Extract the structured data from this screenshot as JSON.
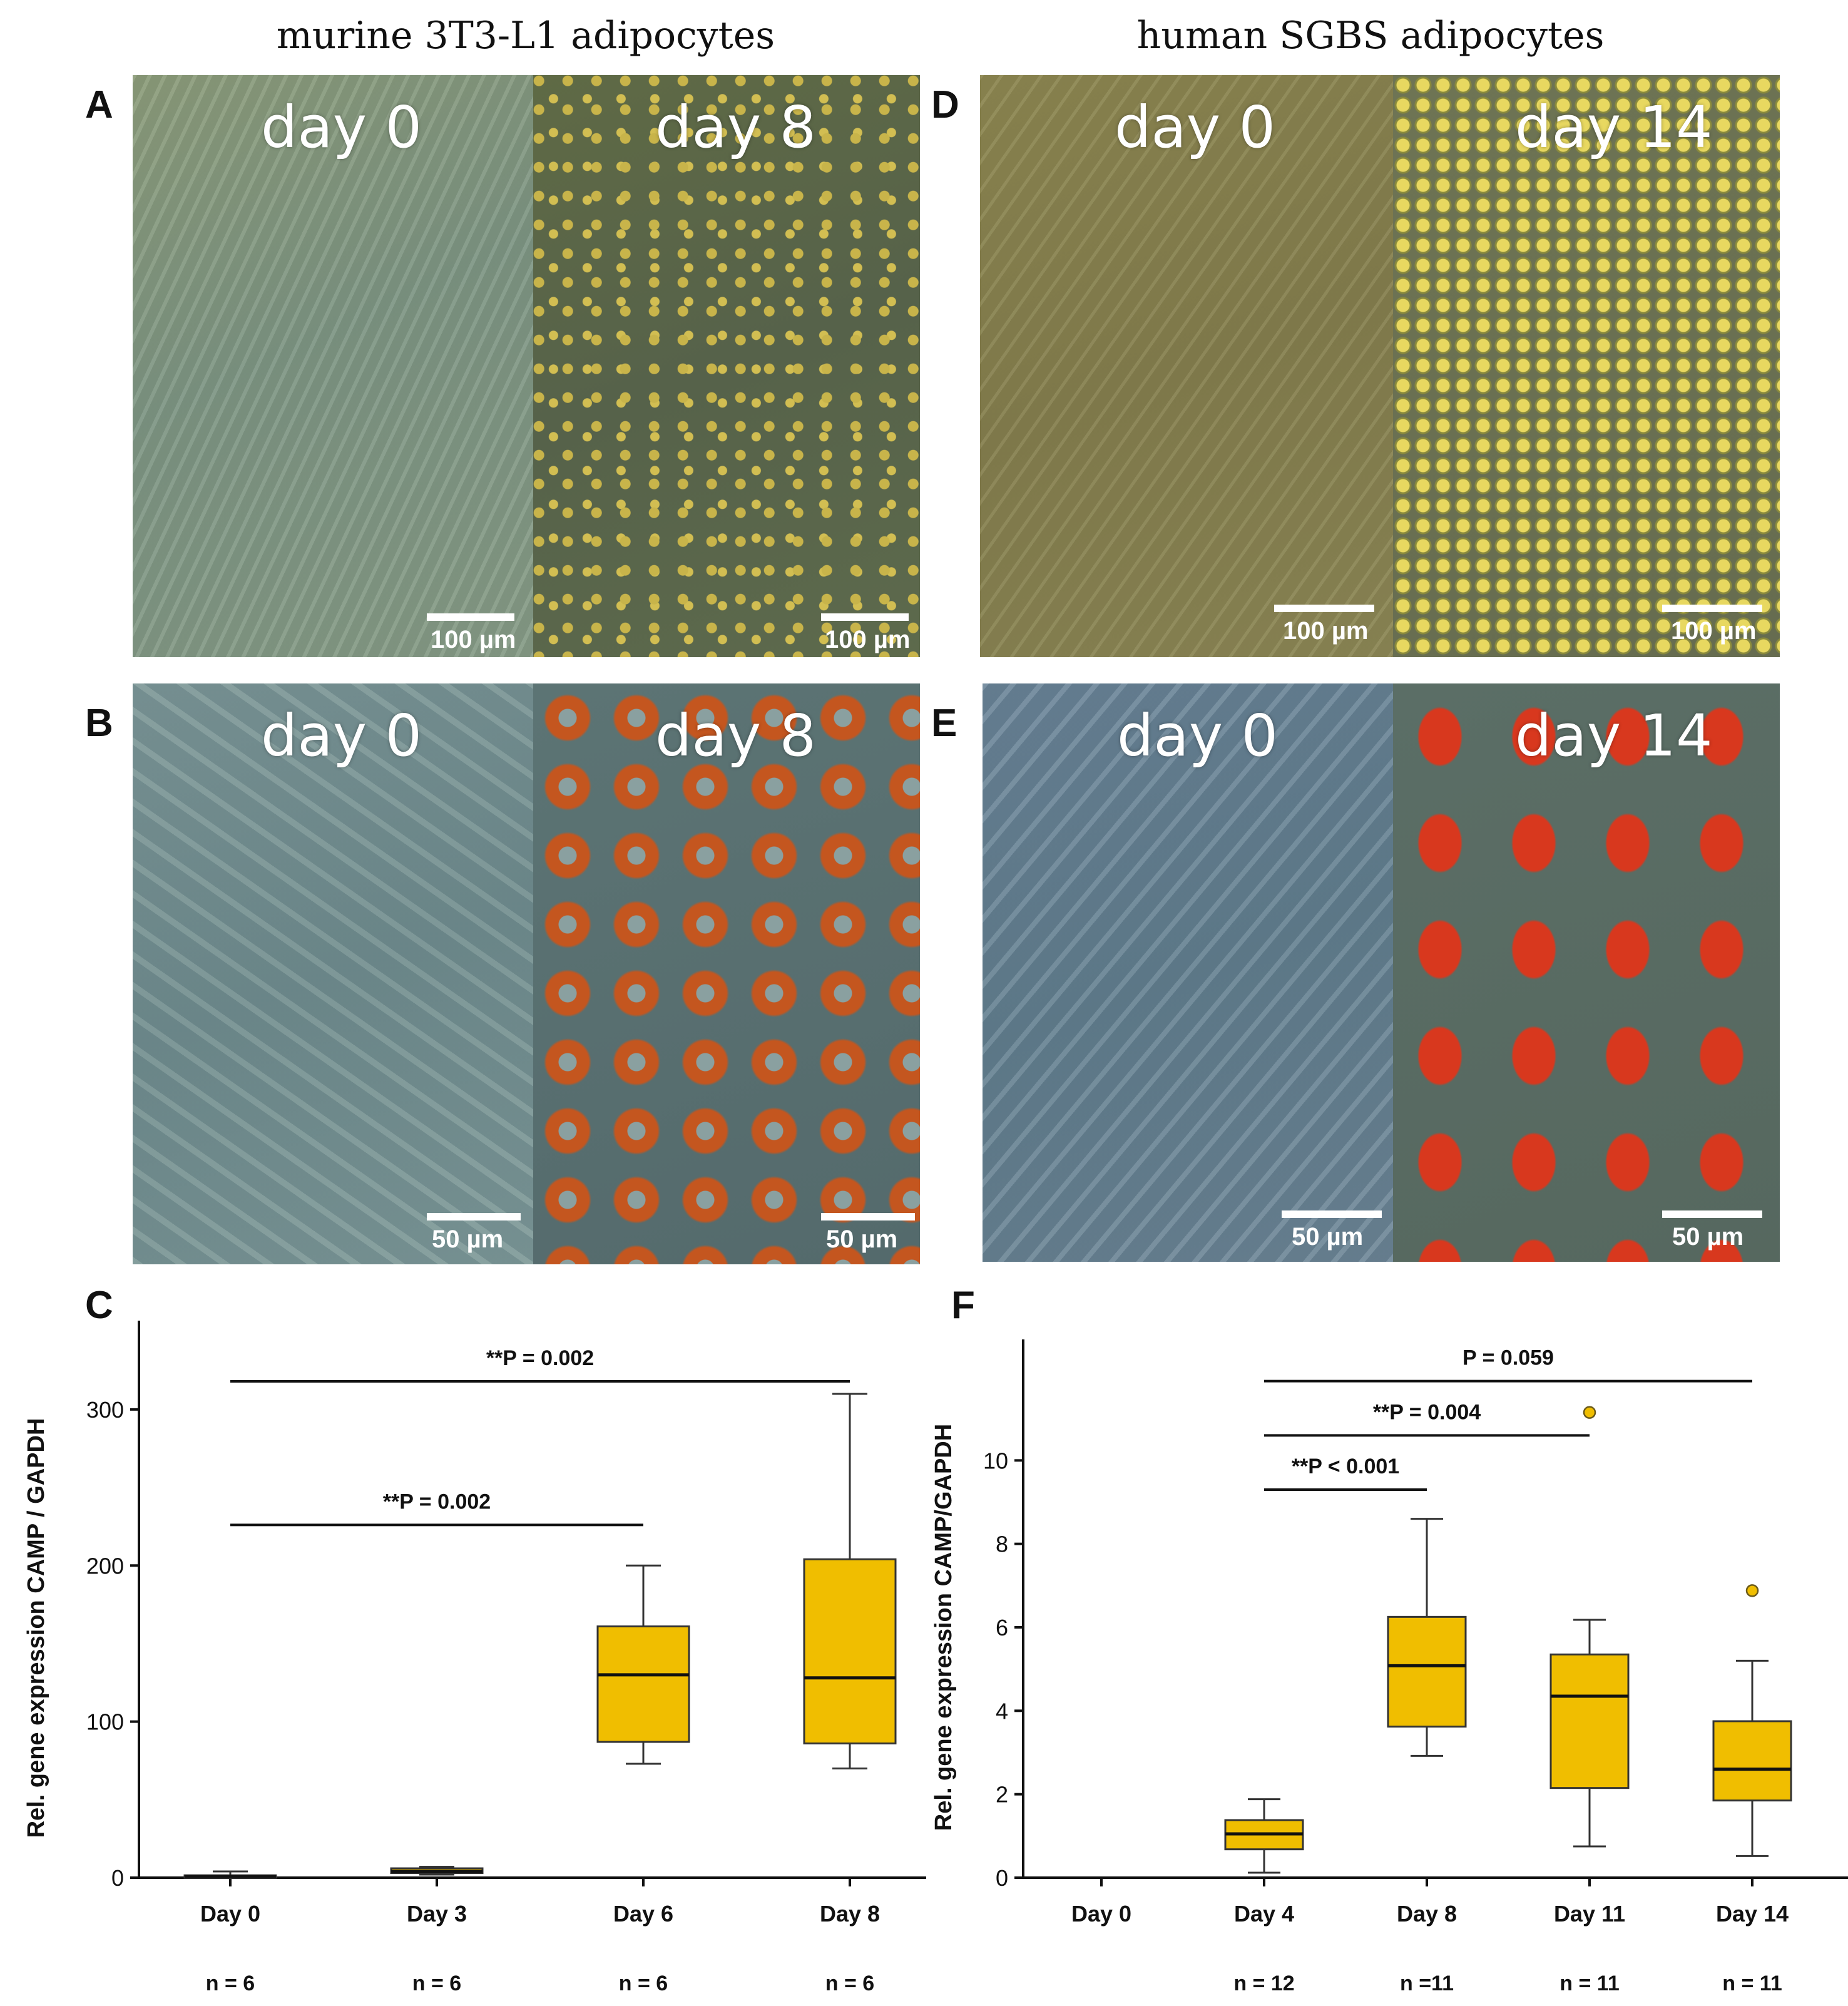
{
  "column_titles": {
    "left": "murine 3T3-L1 adipocytes",
    "right": "human SGBS adipocytes"
  },
  "panels": {
    "A": {
      "letter": "A",
      "left_day": "day 0",
      "right_day": "day 8",
      "left_scale": "100 µm",
      "right_scale": "100 µm"
    },
    "B": {
      "letter": "B",
      "left_day": "day 0",
      "right_day": "day 8",
      "left_scale": "50 µm",
      "right_scale": "50 µm"
    },
    "D": {
      "letter": "D",
      "left_day": "day 0",
      "right_day": "day 14",
      "left_scale": "100 µm",
      "right_scale": "100 µm"
    },
    "E": {
      "letter": "E",
      "left_day": "day 0",
      "right_day": "day 14",
      "left_scale": "50 µm",
      "right_scale": "50 µm"
    }
  },
  "colors": {
    "box_fill": "#f0be00",
    "outlier_fill": "#f0be00",
    "axis": "#111111"
  },
  "chart_data": [
    {
      "panel": "C",
      "type": "box",
      "ylabel": "Rel. gene expression CAMP / GAPDH",
      "ylim": [
        0,
        320
      ],
      "yticks": [
        0,
        100,
        200,
        300
      ],
      "categories": [
        "Day 0",
        "Day 3",
        "Day 6",
        "Day 8"
      ],
      "n_labels": [
        "n = 6",
        "n = 6",
        "n = 6",
        "n = 6"
      ],
      "boxes": [
        {
          "min": 0,
          "q1": 0.5,
          "median": 1,
          "q3": 1.5,
          "max": 4
        },
        {
          "min": 2,
          "q1": 3,
          "median": 4,
          "q3": 6,
          "max": 7
        },
        {
          "min": 73,
          "q1": 87,
          "median": 130,
          "q3": 161,
          "max": 200
        },
        {
          "min": 70,
          "q1": 86,
          "median": 128,
          "q3": 204,
          "max": 310
        }
      ],
      "significance": [
        {
          "from": 0,
          "to": 2,
          "label": "**P = 0.002",
          "y": 226
        },
        {
          "from": 0,
          "to": 3,
          "label": "**P = 0.002",
          "y": 318
        }
      ]
    },
    {
      "panel": "F",
      "type": "box",
      "ylabel": "Rel. gene expression CAMP/GAPDH",
      "ylim": [
        0,
        12
      ],
      "yticks": [
        0,
        2,
        4,
        6,
        8,
        10
      ],
      "categories": [
        "Day 0",
        "Day 4",
        "Day 8",
        "Day 11",
        "Day 14"
      ],
      "n_labels": [
        "",
        "n = 12",
        "n =11",
        "n = 11",
        "n = 11"
      ],
      "boxes": [
        null,
        {
          "min": 0.12,
          "q1": 0.68,
          "median": 1.05,
          "q3": 1.38,
          "max": 1.88
        },
        {
          "min": 2.92,
          "q1": 3.62,
          "median": 5.08,
          "q3": 6.25,
          "max": 8.6
        },
        {
          "min": 0.75,
          "q1": 2.15,
          "median": 4.35,
          "q3": 5.35,
          "max": 6.18
        },
        {
          "min": 0.52,
          "q1": 1.85,
          "median": 2.6,
          "q3": 3.75,
          "max": 5.2
        }
      ],
      "outliers": [
        {
          "category": "Day 11",
          "value": 11.15
        },
        {
          "category": "Day 14",
          "value": 6.88
        }
      ],
      "significance": [
        {
          "from": 1,
          "to": 2,
          "label": "**P < 0.001",
          "y": 9.3
        },
        {
          "from": 1,
          "to": 3,
          "label": "**P = 0.004",
          "y": 10.6
        },
        {
          "from": 1,
          "to": 4,
          "label": "P = 0.059",
          "y": 11.9
        }
      ]
    }
  ]
}
